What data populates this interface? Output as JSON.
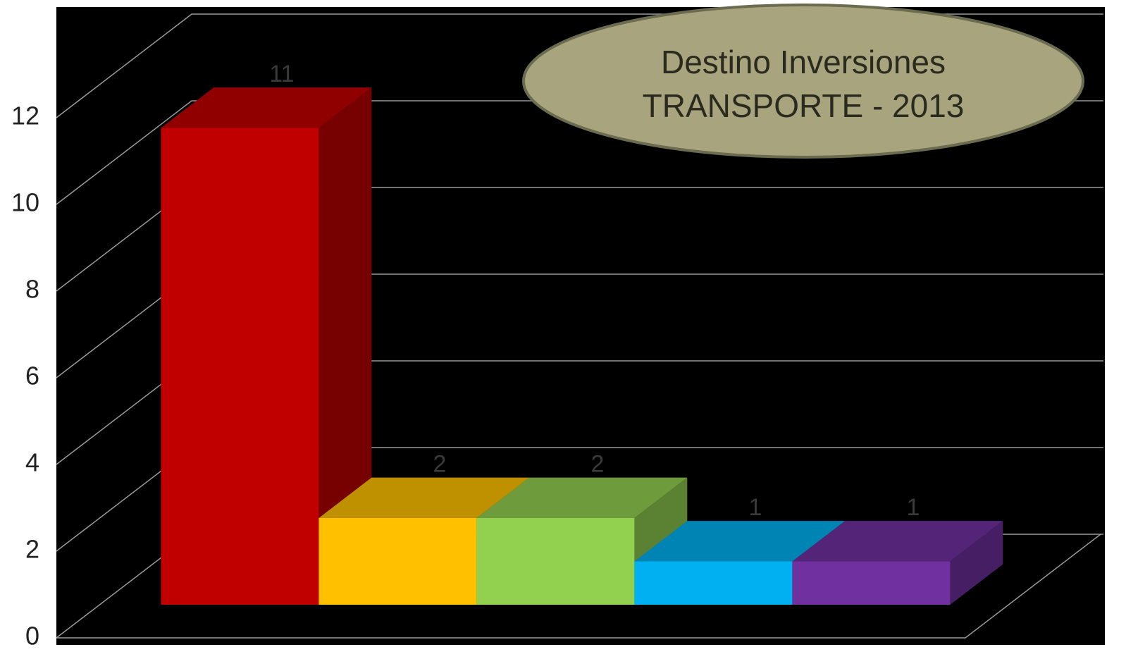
{
  "chart_data": {
    "type": "bar3d",
    "title": [
      "Destino Inversiones",
      "TRANSPORTE - 2013"
    ],
    "categories": [
      null,
      null,
      null,
      null,
      null
    ],
    "values": [
      11,
      2,
      2,
      1,
      1
    ],
    "colors": [
      "#c00000",
      "#ffc000",
      "#92d050",
      "#00b0f0",
      "#7030a0"
    ],
    "ylim": [
      0,
      12
    ],
    "yticks": [
      0,
      2,
      4,
      6,
      8,
      10,
      12
    ],
    "grid": true
  }
}
